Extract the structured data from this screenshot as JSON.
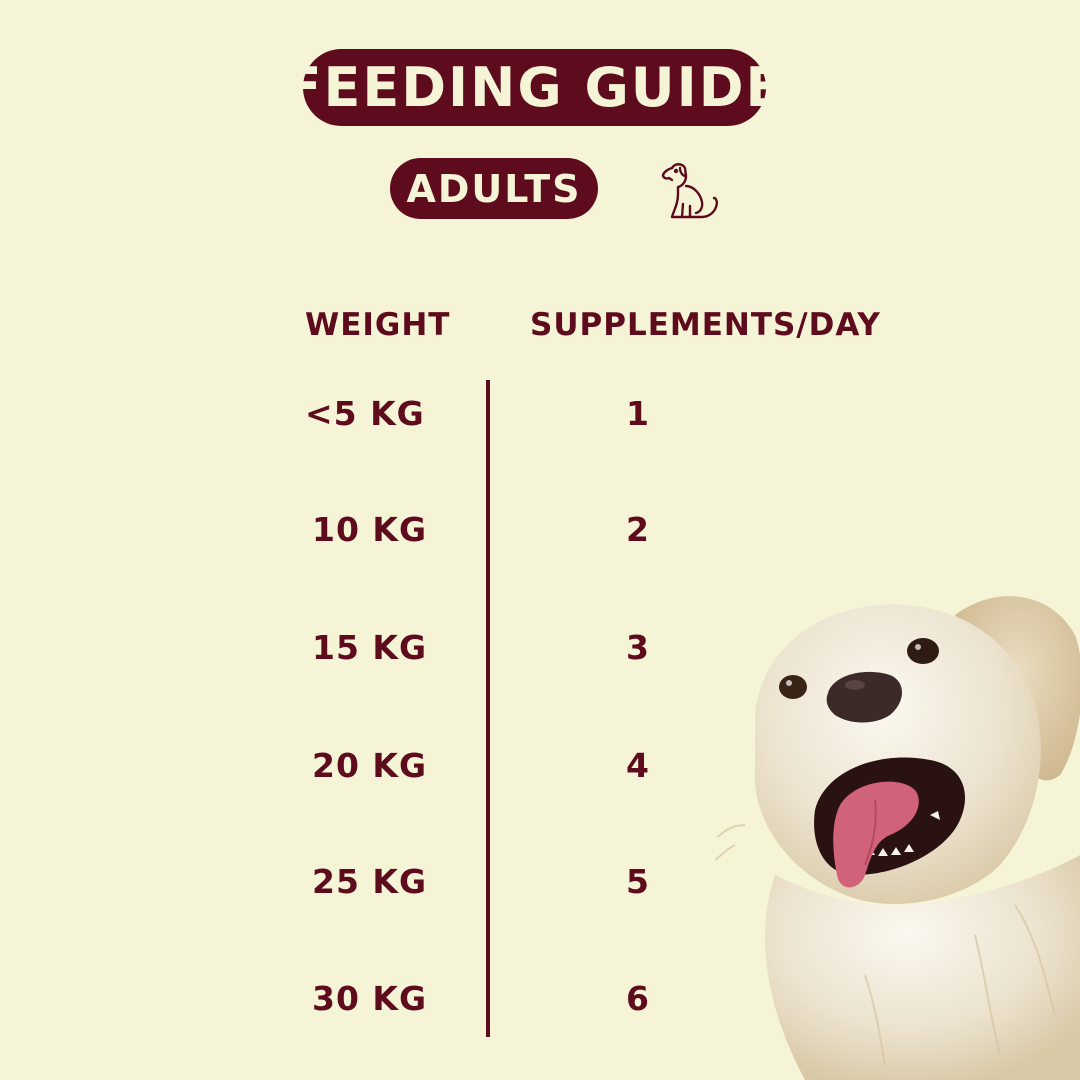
{
  "header": {
    "title": "FEEDING GUIDE",
    "subtitle": "ADULTS",
    "icon": "sitting-dog-icon"
  },
  "table": {
    "columns": [
      "WEIGHT",
      "SUPPLEMENTS/DAY"
    ],
    "rows": [
      {
        "weight": "<5 KG",
        "supplements": "1"
      },
      {
        "weight": "10 KG",
        "supplements": "2"
      },
      {
        "weight": "15 KG",
        "supplements": "3"
      },
      {
        "weight": "20 KG",
        "supplements": "4"
      },
      {
        "weight": "25 KG",
        "supplements": "5"
      },
      {
        "weight": "30 KG",
        "supplements": "6"
      }
    ]
  },
  "colors": {
    "background": "#f5f4d6",
    "accent": "#5e0b1e"
  },
  "photo": {
    "subject": "golden-retriever-photo"
  }
}
